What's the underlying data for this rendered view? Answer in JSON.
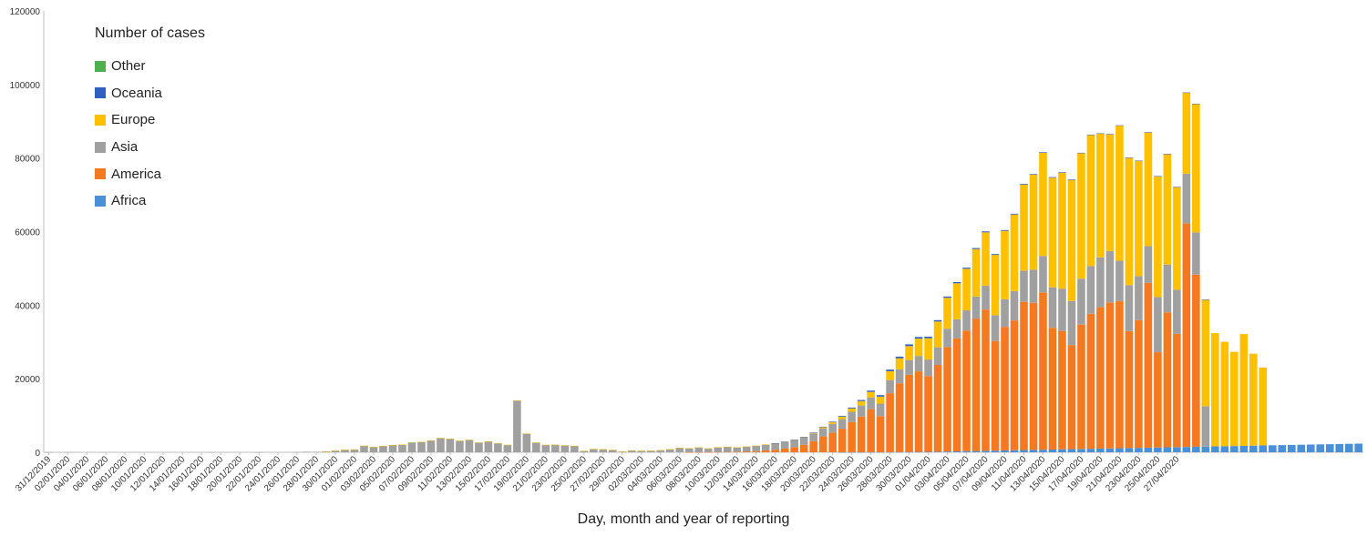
{
  "chart_data": {
    "type": "bar",
    "stacked": true,
    "legend_title": "Number of cases",
    "xlabel": "Day, month and year of reporting",
    "ylabel": "",
    "ylim": [
      0,
      120000
    ],
    "yticks": [
      0,
      20000,
      40000,
      60000,
      80000,
      100000,
      120000
    ],
    "grid": false,
    "legend_position": "top-left",
    "first_date": "31/12/2019",
    "tick_labels": [
      "31/12/2019",
      "02/01/2020",
      "04/01/2020",
      "06/01/2020",
      "08/01/2020",
      "10/01/2020",
      "12/01/2020",
      "14/01/2020",
      "16/01/2020",
      "18/01/2020",
      "20/01/2020",
      "22/01/2020",
      "24/01/2020",
      "26/01/2020",
      "28/01/2020",
      "30/01/2020",
      "01/02/2020",
      "03/02/2020",
      "05/02/2020",
      "07/02/2020",
      "09/02/2020",
      "11/02/2020",
      "13/02/2020",
      "15/02/2020",
      "17/02/2020",
      "19/02/2020",
      "21/02/2020",
      "23/02/2020",
      "25/02/2020",
      "27/02/2020",
      "29/02/2020",
      "02/03/2020",
      "04/03/2020",
      "06/03/2020",
      "08/03/2020",
      "10/03/2020",
      "12/03/2020",
      "14/03/2020",
      "16/03/2020",
      "18/03/2020",
      "20/03/2020",
      "22/03/2020",
      "24/03/2020",
      "26/03/2020",
      "28/03/2020",
      "30/03/2020",
      "01/04/2020",
      "03/04/2020",
      "05/04/2020",
      "07/04/2020",
      "09/04/2020",
      "11/04/2020",
      "13/04/2020",
      "15/04/2020",
      "17/04/2020",
      "19/04/2020",
      "21/04/2020",
      "23/04/2020",
      "25/04/2020",
      "27/04/2020"
    ],
    "legend_order": [
      "Other",
      "Oceania",
      "Europe",
      "Asia",
      "America",
      "Africa"
    ],
    "series": [
      {
        "name": "Africa",
        "color": "#4a90d9",
        "values": [
          0,
          0,
          0,
          0,
          0,
          0,
          0,
          0,
          0,
          0,
          0,
          0,
          0,
          0,
          0,
          0,
          0,
          0,
          0,
          0,
          0,
          0,
          0,
          0,
          0,
          0,
          0,
          0,
          0,
          0,
          0,
          0,
          0,
          0,
          0,
          0,
          0,
          0,
          0,
          0,
          0,
          0,
          0,
          0,
          0,
          0,
          0,
          0,
          0,
          0,
          0,
          0,
          0,
          0,
          0,
          0,
          0,
          0,
          0,
          0,
          0,
          0,
          0,
          0,
          0,
          0,
          0,
          0,
          0,
          0,
          0,
          0,
          0,
          0,
          0,
          0,
          0,
          0,
          0,
          0,
          0,
          0,
          0,
          10,
          10,
          20,
          20,
          30,
          40,
          60,
          80,
          100,
          120,
          150,
          200,
          250,
          300,
          350,
          400,
          450,
          500,
          550,
          600,
          650,
          700,
          750,
          800,
          850,
          900,
          950,
          1000,
          1050,
          1100,
          1150,
          1200,
          1250,
          1300,
          1350,
          1400,
          1450,
          1500,
          1550,
          1600,
          1650,
          1700,
          1750,
          1800,
          1850,
          1900,
          1950,
          2000,
          2050,
          2100,
          2150,
          2200,
          2250,
          2300,
          2350
        ]
      },
      {
        "name": "America",
        "color": "#f47920",
        "values": [
          0,
          0,
          0,
          0,
          0,
          0,
          0,
          0,
          0,
          0,
          0,
          0,
          0,
          0,
          0,
          0,
          0,
          0,
          0,
          0,
          0,
          0,
          0,
          0,
          0,
          0,
          0,
          0,
          0,
          0,
          0,
          0,
          0,
          0,
          0,
          0,
          0,
          0,
          0,
          0,
          0,
          0,
          0,
          0,
          0,
          0,
          0,
          0,
          0,
          0,
          0,
          0,
          0,
          0,
          0,
          0,
          0,
          0,
          0,
          0,
          0,
          0,
          0,
          0,
          0,
          0,
          0,
          10,
          20,
          40,
          60,
          100,
          150,
          250,
          300,
          500,
          700,
          1000,
          1400,
          2000,
          3000,
          4300,
          5300,
          6400,
          8200,
          9700,
          11700,
          9800,
          16000,
          18700,
          21000,
          21900,
          20600,
          23600,
          28400,
          30700,
          32800,
          36000,
          38400,
          29800,
          33600,
          35300,
          40300,
          40000,
          42700,
          33100,
          32200,
          28300,
          33800,
          36700,
          38500,
          39700,
          40000,
          31800,
          34700,
          44800,
          25900,
          36700,
          30800,
          60800,
          46800
        ]
      },
      {
        "name": "Asia",
        "color": "#a0a0a0",
        "values": [
          27,
          0,
          17,
          0,
          0,
          0,
          0,
          0,
          0,
          0,
          0,
          0,
          0,
          0,
          0,
          0,
          0,
          1,
          0,
          0,
          0,
          0,
          2,
          0,
          0,
          0,
          77,
          149,
          131,
          259,
          444,
          688,
          769,
          1771,
          1459,
          1737,
          1982,
          2102,
          2590,
          2829,
          3235,
          3884,
          3694,
          3143,
          3385,
          2652,
          2973,
          2467,
          2015,
          14108,
          5090,
          2641,
          2008,
          2048,
          1888,
          1749,
          391,
          889,
          823,
          648,
          214,
          508,
          406,
          433,
          579,
          818,
          1200,
          1100,
          1300,
          1000,
          1300,
          1400,
          1200,
          1300,
          1500,
          1600,
          1700,
          1800,
          1900,
          2000,
          2100,
          2200,
          2400,
          2600,
          2800,
          3000,
          3200,
          3400,
          3600,
          3800,
          4000,
          4200,
          4500,
          4800,
          5000,
          5200,
          5500,
          6000,
          6500,
          7000,
          7500,
          8000,
          8500,
          9000,
          10000,
          11000,
          11500,
          12000,
          12500,
          13000,
          13500,
          14000,
          11000,
          12500,
          12000,
          10000,
          15000,
          13000,
          12000,
          13500,
          11500,
          11000
        ]
      },
      {
        "name": "Europe",
        "color": "#ffc000",
        "values": [
          0,
          0,
          0,
          0,
          0,
          0,
          0,
          0,
          0,
          0,
          0,
          0,
          0,
          0,
          0,
          0,
          0,
          0,
          0,
          0,
          0,
          0,
          0,
          0,
          0,
          0,
          0,
          0,
          0,
          4,
          5,
          4,
          4,
          4,
          4,
          4,
          5,
          5,
          5,
          5,
          5,
          6,
          6,
          6,
          6,
          7,
          7,
          7,
          7,
          8,
          8,
          8,
          8,
          8,
          9,
          9,
          9,
          9,
          10,
          10,
          10,
          11,
          11,
          12,
          12,
          13,
          14,
          15,
          16,
          17,
          18,
          19,
          20,
          22,
          25,
          30,
          40,
          60,
          90,
          140,
          200,
          300,
          450,
          700,
          900,
          1200,
          1500,
          1900,
          2400,
          3000,
          3800,
          4700,
          5800,
          7000,
          8400,
          9800,
          11300,
          12900,
          14500,
          16400,
          18600,
          20800,
          23400,
          25800,
          28000,
          29800,
          31500,
          32900,
          34100,
          35600,
          33600,
          31700,
          36700,
          34600,
          31300,
          30900,
          32800,
          30000,
          27900,
          22000,
          34900,
          28900,
          30800,
          28400,
          25600,
          30400,
          25000,
          21200
        ]
      },
      {
        "name": "Oceania",
        "color": "#2f5fbf",
        "values": [
          0,
          0,
          0,
          0,
          0,
          0,
          0,
          0,
          0,
          0,
          0,
          0,
          0,
          0,
          0,
          0,
          0,
          0,
          0,
          0,
          0,
          0,
          0,
          0,
          0,
          0,
          0,
          0,
          0,
          0,
          0,
          0,
          0,
          0,
          0,
          0,
          0,
          0,
          0,
          0,
          0,
          0,
          0,
          0,
          0,
          0,
          0,
          0,
          0,
          0,
          0,
          0,
          0,
          0,
          0,
          0,
          0,
          0,
          0,
          0,
          0,
          0,
          0,
          0,
          0,
          0,
          0,
          0,
          0,
          0,
          0,
          0,
          0,
          0,
          0,
          0,
          10,
          20,
          30,
          50,
          80,
          120,
          160,
          200,
          250,
          300,
          350,
          400,
          430,
          450,
          460,
          440,
          400,
          380,
          350,
          320,
          300,
          280,
          260,
          240,
          220,
          200,
          190,
          180,
          170,
          160,
          150,
          140,
          130,
          120,
          110,
          100,
          100,
          100,
          90,
          90,
          90,
          80,
          80,
          80,
          70,
          70
        ]
      },
      {
        "name": "Other",
        "color": "#4caf50",
        "values": [
          0,
          0,
          0,
          0,
          0,
          0,
          0,
          0,
          0,
          0,
          0,
          0,
          0,
          0,
          0,
          0,
          0,
          0,
          0,
          0,
          0,
          0,
          0,
          0,
          0,
          0,
          0,
          0,
          0,
          0,
          0,
          0,
          0,
          0,
          0,
          0,
          0,
          0,
          61,
          0,
          0,
          0,
          0,
          0,
          0,
          0,
          0,
          0,
          0,
          0,
          0,
          0,
          0,
          0,
          0,
          0,
          0,
          0,
          0,
          0,
          0,
          0,
          0,
          0,
          0,
          0,
          0,
          0,
          0,
          0,
          0,
          0,
          0,
          0,
          0,
          0,
          0,
          0,
          0,
          0,
          0,
          0,
          0,
          0,
          0,
          0,
          0,
          0,
          0,
          0,
          0,
          0,
          0,
          0,
          0,
          0,
          0,
          0,
          0,
          0,
          0,
          0,
          0,
          0,
          0,
          0,
          0,
          0,
          0,
          0,
          0,
          0,
          0,
          0,
          0,
          0,
          0,
          0,
          0,
          0,
          0,
          0,
          0,
          0,
          0,
          0,
          0,
          0
        ]
      }
    ]
  }
}
